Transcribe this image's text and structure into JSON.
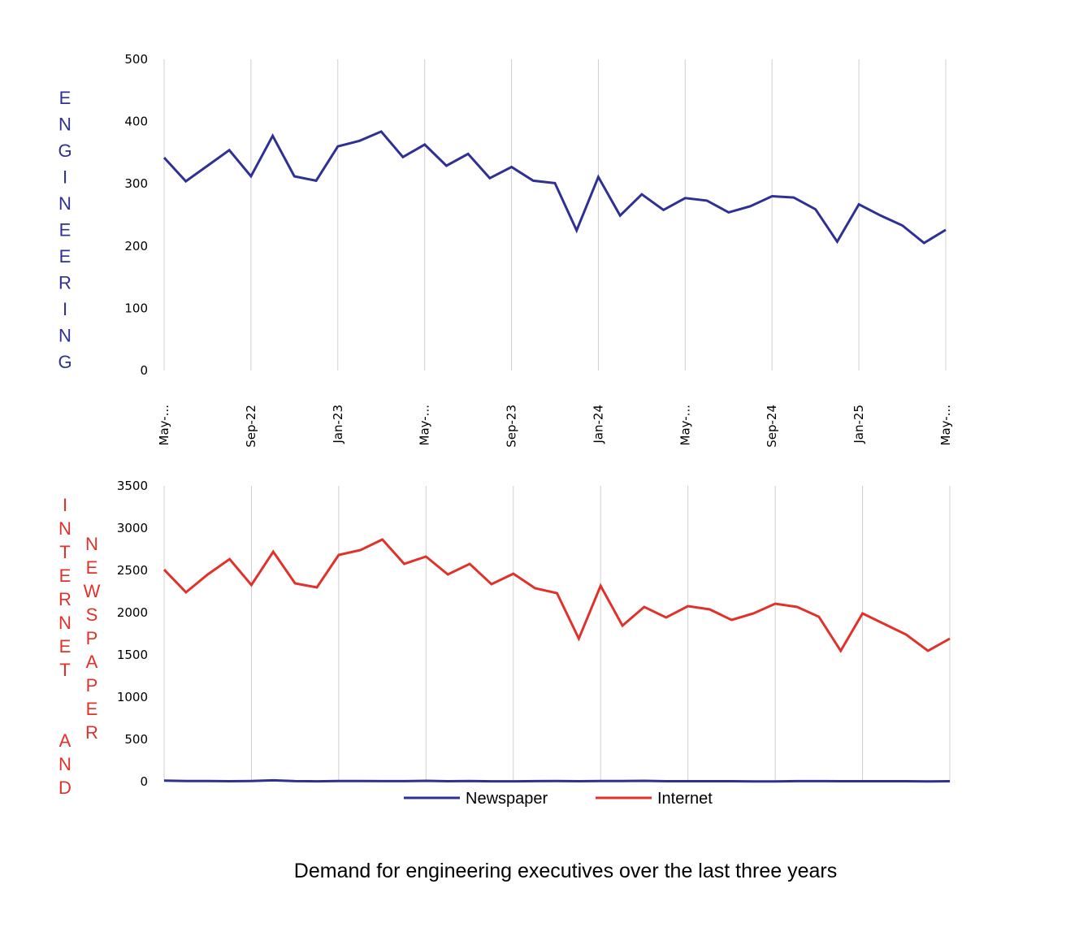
{
  "title": "Demand for engineering executives over the last three years",
  "colors": {
    "newspaper": "#2e3192",
    "internet": "#e0322b",
    "grid": "#d0d0d0",
    "engineering_label": "#2e3192",
    "internet_label": "#e0322b"
  },
  "labels": {
    "top_ylabel": "ENGINEERING",
    "bottom_ylabel_1": "INTERNET  AND",
    "bottom_ylabel_2": "NEWSPAPER"
  },
  "legend": [
    {
      "name": "Newspaper",
      "color": "#2e3192"
    },
    {
      "name": "Internet",
      "color": "#e0322b"
    }
  ],
  "chart_data": [
    {
      "type": "line",
      "title": "",
      "ylabel": "ENGINEERING",
      "xlabel": "",
      "ylim": [
        0,
        500
      ],
      "yticks": [
        0,
        100,
        200,
        300,
        400,
        500
      ],
      "x_tick_labels": [
        "May-...",
        "Sep-22",
        "Jan-23",
        "May-...",
        "Sep-23",
        "Jan-24",
        "May-...",
        "Sep-24",
        "Jan-25",
        "May-..."
      ],
      "x_tick_every": 4,
      "grid": "vertical",
      "x": [
        "May-22",
        "Jun-22",
        "Jul-22",
        "Aug-22",
        "Sep-22",
        "Oct-22",
        "Nov-22",
        "Dec-22",
        "Jan-23",
        "Feb-23",
        "Mar-23",
        "Apr-23",
        "May-23",
        "Jun-23",
        "Jul-23",
        "Aug-23",
        "Sep-23",
        "Oct-23",
        "Nov-23",
        "Dec-23",
        "Jan-24",
        "Feb-24",
        "Mar-24",
        "Apr-24",
        "May-24",
        "Jun-24",
        "Jul-24",
        "Aug-24",
        "Sep-24",
        "Oct-24",
        "Nov-24",
        "Dec-24",
        "Jan-25",
        "Feb-25",
        "Mar-25",
        "Apr-25",
        "May-25"
      ],
      "series": [
        {
          "name": "Engineering",
          "color": "#2e3192",
          "values": [
            342,
            304,
            329,
            354,
            312,
            377,
            312,
            305,
            360,
            369,
            384,
            343,
            363,
            329,
            348,
            309,
            327,
            305,
            301,
            225,
            311,
            249,
            283,
            258,
            277,
            273,
            254,
            264,
            280,
            278,
            259,
            207,
            267,
            249,
            233,
            205,
            226
          ]
        }
      ]
    },
    {
      "type": "line",
      "title": "",
      "ylabel": "INTERNET AND NEWSPAPER",
      "xlabel": "",
      "ylim": [
        0,
        3500
      ],
      "yticks": [
        0,
        500,
        1000,
        1500,
        2000,
        2500,
        3000,
        3500
      ],
      "x_tick_every": 4,
      "grid": "vertical",
      "legend_position": "bottom",
      "x": [
        "May-22",
        "Jun-22",
        "Jul-22",
        "Aug-22",
        "Sep-22",
        "Oct-22",
        "Nov-22",
        "Dec-22",
        "Jan-23",
        "Feb-23",
        "Mar-23",
        "Apr-23",
        "May-23",
        "Jun-23",
        "Jul-23",
        "Aug-23",
        "Sep-23",
        "Oct-23",
        "Nov-23",
        "Dec-23",
        "Jan-24",
        "Feb-24",
        "Mar-24",
        "Apr-24",
        "May-24",
        "Jun-24",
        "Jul-24",
        "Aug-24",
        "Sep-24",
        "Oct-24",
        "Nov-24",
        "Dec-24",
        "Jan-25",
        "Feb-25",
        "Mar-25",
        "Apr-25",
        "May-25"
      ],
      "series": [
        {
          "name": "Newspaper",
          "color": "#2e3192",
          "values": [
            12,
            8,
            8,
            5,
            8,
            15,
            6,
            4,
            8,
            8,
            6,
            6,
            10,
            5,
            8,
            4,
            4,
            6,
            8,
            5,
            8,
            8,
            10,
            5,
            5,
            5,
            5,
            3,
            3,
            6,
            6,
            5,
            5,
            5,
            5,
            3,
            5
          ]
        },
        {
          "name": "Internet",
          "color": "#e0322b",
          "values": [
            2509,
            2240,
            2452,
            2634,
            2327,
            2721,
            2346,
            2298,
            2683,
            2740,
            2865,
            2577,
            2663,
            2452,
            2577,
            2337,
            2461,
            2288,
            2231,
            1692,
            2317,
            1846,
            2067,
            1942,
            2077,
            2038,
            1913,
            1990,
            2106,
            2067,
            1952,
            1548,
            1990,
            1865,
            1740,
            1548,
            1692
          ]
        }
      ]
    }
  ]
}
